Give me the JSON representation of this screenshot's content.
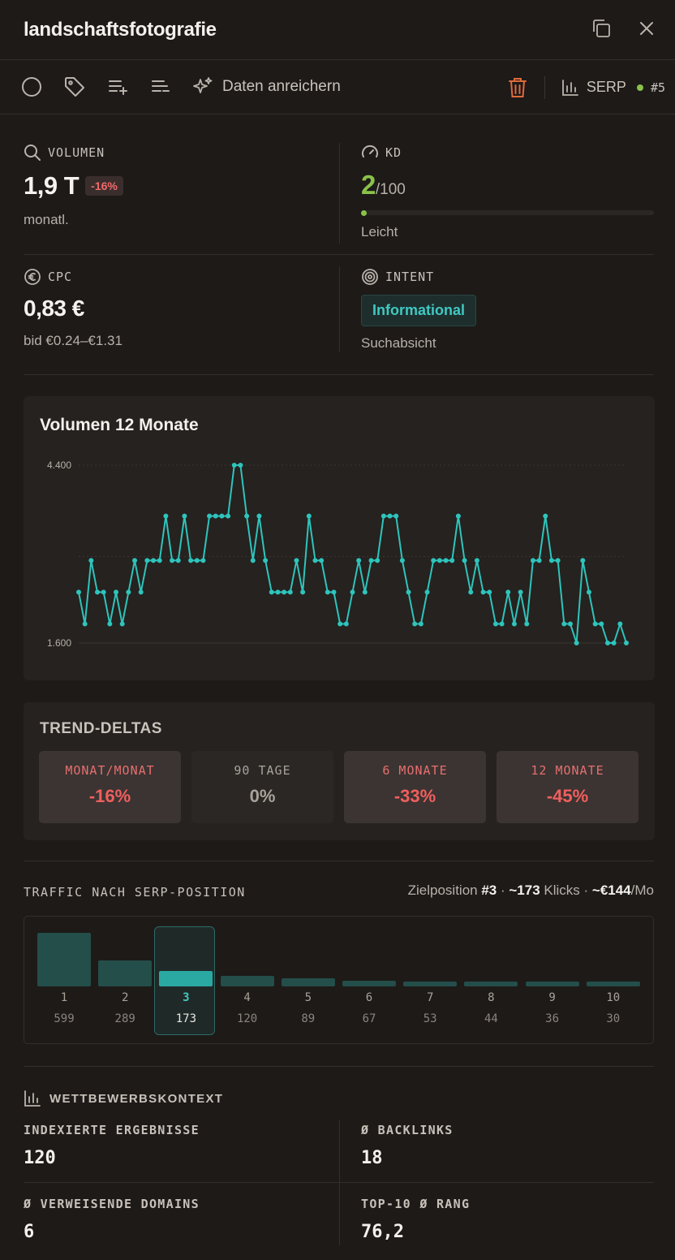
{
  "header": {
    "title": "landschaftsfotografie",
    "copy_icon": "copy-icon",
    "close_icon": "close-icon"
  },
  "toolbar": {
    "enrich_label": "Daten anreichern",
    "serp_label": "SERP",
    "serp_rank": "#5"
  },
  "metrics": {
    "volume": {
      "label": "VOLUMEN",
      "value": "1,9 T",
      "delta": "-16%",
      "sub": "monatl."
    },
    "kd": {
      "label": "KD",
      "value": "2",
      "max": "/100",
      "fraction": 0.02,
      "sub": "Leicht"
    },
    "cpc": {
      "label": "CPC",
      "value": "0,83 €",
      "sub": "bid €0.24–€1.31"
    },
    "intent": {
      "label": "INTENT",
      "value": "Informational",
      "sub": "Suchabsicht"
    }
  },
  "chart_data": {
    "type": "line",
    "title": "Volumen 12 Monate",
    "ylim": [
      1600,
      4400
    ],
    "yticks": [
      "4.400",
      "1.600"
    ],
    "values": [
      2400,
      1900,
      2900,
      2400,
      2400,
      1900,
      2400,
      1900,
      2400,
      2900,
      2400,
      2900,
      2900,
      2900,
      3600,
      2900,
      2900,
      3600,
      2900,
      2900,
      2900,
      3600,
      3600,
      3600,
      3600,
      4400,
      4400,
      3600,
      2900,
      3600,
      2900,
      2400,
      2400,
      2400,
      2400,
      2900,
      2400,
      3600,
      2900,
      2900,
      2400,
      2400,
      1900,
      1900,
      2400,
      2900,
      2400,
      2900,
      2900,
      3600,
      3600,
      3600,
      2900,
      2400,
      1900,
      1900,
      2400,
      2900,
      2900,
      2900,
      2900,
      3600,
      2900,
      2400,
      2900,
      2400,
      2400,
      1900,
      1900,
      2400,
      1900,
      2400,
      1900,
      2900,
      2900,
      3600,
      2900,
      2900,
      1900,
      1900,
      1600,
      2900,
      2400,
      1900,
      1900,
      1600,
      1600,
      1900,
      1600
    ],
    "color": "#2ec4bc"
  },
  "trend": {
    "title": "TREND-DELTAS",
    "tiles": [
      {
        "label": "MONAT/MONAT",
        "value": "-16%"
      },
      {
        "label": "90 TAGE",
        "value": "0%"
      },
      {
        "label": "6 MONATE",
        "value": "-33%"
      },
      {
        "label": "12 MONATE",
        "value": "-45%"
      }
    ]
  },
  "traffic": {
    "title": "TRAFFIC NACH SERP-POSITION",
    "meta_prefix": "Zielposition ",
    "target_pos": "#3",
    "meta_sep1": " · ",
    "clicks": "~173",
    "meta_clicks_label": " Klicks · ",
    "money": "~€144",
    "meta_suffix": "/Mo",
    "positions": [
      {
        "pos": "1",
        "clicks": "599",
        "value": 599
      },
      {
        "pos": "2",
        "clicks": "289",
        "value": 289
      },
      {
        "pos": "3",
        "clicks": "173",
        "value": 173
      },
      {
        "pos": "4",
        "clicks": "120",
        "value": 120
      },
      {
        "pos": "5",
        "clicks": "89",
        "value": 89
      },
      {
        "pos": "6",
        "clicks": "67",
        "value": 67
      },
      {
        "pos": "7",
        "clicks": "53",
        "value": 53
      },
      {
        "pos": "8",
        "clicks": "44",
        "value": 44
      },
      {
        "pos": "9",
        "clicks": "36",
        "value": 36
      },
      {
        "pos": "10",
        "clicks": "30",
        "value": 30
      }
    ],
    "selected_index": 2
  },
  "competition": {
    "title": "WETTBEWERBSKONTEXT",
    "stats": [
      {
        "label": "INDEXIERTE ERGEBNISSE",
        "value": "120"
      },
      {
        "label": "Ø BACKLINKS",
        "value": "18"
      },
      {
        "label": "Ø VERWEISENDE DOMAINS",
        "value": "6"
      },
      {
        "label": "TOP-10 Ø RANG",
        "value": "76,2"
      }
    ]
  }
}
